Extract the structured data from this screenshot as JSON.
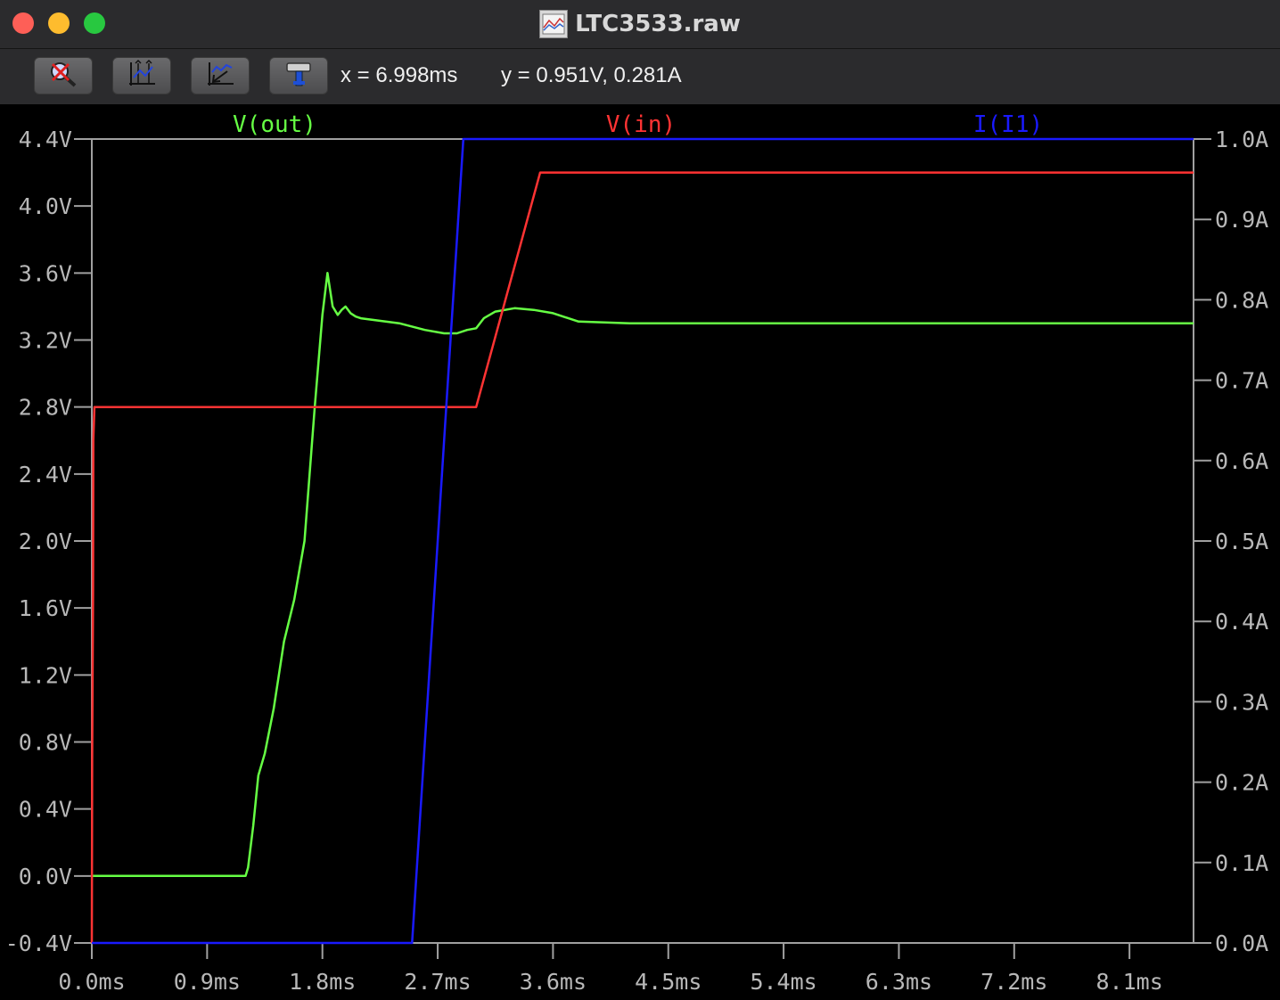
{
  "window": {
    "title": "LTC3533.raw",
    "icons": {
      "file": "waveform-file-icon"
    }
  },
  "toolbar": {
    "buttons": [
      {
        "name": "zoom-cancel-button",
        "icon": "zoom-cancel-icon"
      },
      {
        "name": "autorange-button",
        "icon": "autorange-icon"
      },
      {
        "name": "zoom-previous-button",
        "icon": "zoom-previous-icon"
      },
      {
        "name": "hammer-button",
        "icon": "hammer-icon"
      }
    ],
    "readout_x": "x = 6.998ms",
    "readout_y": "y = 0.951V, 0.281A"
  },
  "chart_data": {
    "type": "line",
    "background": "#000000",
    "x_axis": {
      "label": "",
      "range": [
        0.0,
        8.6
      ],
      "unit": "ms",
      "ticks": [
        0.0,
        0.9,
        1.8,
        2.7,
        3.6,
        4.5,
        5.4,
        6.3,
        7.2,
        8.1
      ],
      "tick_labels": [
        "0.0ms",
        "0.9ms",
        "1.8ms",
        "2.7ms",
        "3.6ms",
        "4.5ms",
        "5.4ms",
        "6.3ms",
        "7.2ms",
        "8.1ms"
      ]
    },
    "y_left": {
      "range": [
        -0.4,
        4.4
      ],
      "ticks": [
        4.4,
        4.0,
        3.6,
        3.2,
        2.8,
        2.4,
        2.0,
        1.6,
        1.2,
        0.8,
        0.4,
        0.0,
        -0.4
      ],
      "tick_labels": [
        "4.4V",
        "4.0V",
        "3.6V",
        "3.2V",
        "2.8V",
        "2.4V",
        "2.0V",
        "1.6V",
        "1.2V",
        "0.8V",
        "0.4V",
        "0.0V",
        "-0.4V"
      ]
    },
    "y_right": {
      "range": [
        0.0,
        1.0
      ],
      "ticks": [
        1.0,
        0.9,
        0.8,
        0.7,
        0.6,
        0.5,
        0.4,
        0.3,
        0.2,
        0.1,
        0.0
      ],
      "tick_labels": [
        "1.0A",
        "0.9A",
        "0.8A",
        "0.7A",
        "0.6A",
        "0.5A",
        "0.4A",
        "0.3A",
        "0.2A",
        "0.1A",
        "0.0A"
      ]
    },
    "series": [
      {
        "name": "V(out)",
        "color": "#66ff44",
        "axis": "left",
        "x": [
          0.0,
          1.2,
          1.22,
          1.26,
          1.3,
          1.35,
          1.42,
          1.5,
          1.58,
          1.66,
          1.74,
          1.8,
          1.84,
          1.88,
          1.92,
          1.95,
          1.98,
          2.02,
          2.06,
          2.1,
          2.2,
          2.4,
          2.6,
          2.75,
          2.85,
          2.93,
          3.0,
          3.06,
          3.15,
          3.3,
          3.45,
          3.6,
          3.8,
          4.2,
          5.0,
          6.5,
          8.6
        ],
        "values": [
          0.0,
          0.0,
          0.05,
          0.3,
          0.6,
          0.73,
          1.0,
          1.4,
          1.65,
          2.0,
          2.8,
          3.35,
          3.6,
          3.4,
          3.35,
          3.38,
          3.4,
          3.36,
          3.34,
          3.33,
          3.32,
          3.3,
          3.26,
          3.24,
          3.24,
          3.26,
          3.27,
          3.33,
          3.37,
          3.39,
          3.38,
          3.36,
          3.31,
          3.3,
          3.3,
          3.3,
          3.3
        ]
      },
      {
        "name": "V(in)",
        "color": "#ff3333",
        "axis": "left",
        "x": [
          0.0,
          0.003,
          0.01,
          0.012,
          0.02,
          0.025,
          3.0,
          3.5,
          8.6
        ],
        "values": [
          -0.4,
          0.7,
          1.7,
          2.6,
          2.8,
          2.8,
          2.8,
          4.2,
          4.2
        ]
      },
      {
        "name": "I(I1)",
        "color": "#1a1aff",
        "axis": "right",
        "x": [
          0.0,
          2.5,
          2.9,
          8.6
        ],
        "values": [
          0.0,
          0.0,
          1.0,
          1.0
        ]
      }
    ]
  }
}
